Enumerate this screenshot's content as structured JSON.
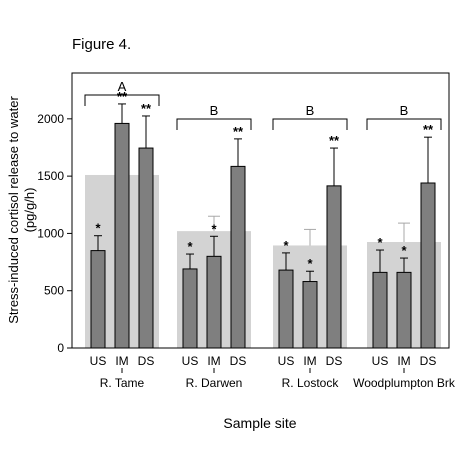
{
  "figure_label": "Figure 4.",
  "chart_data": {
    "type": "bar",
    "xlabel": "Sample site",
    "ylabel_line1": "Stress-induced cortisol release to water",
    "ylabel_line2": "(pg/g/h)",
    "ylim": [
      0,
      2400
    ],
    "yticks": [
      0,
      500,
      1000,
      1500,
      2000
    ],
    "grid": false,
    "colors": {
      "site_bar": "#d3d3d3",
      "subgroup_bar": "#7f7f7f",
      "axis": "#000000"
    },
    "sites": [
      {
        "name": "R. Tame",
        "group_letter": "A",
        "site_mean": 1510,
        "subgroups": [
          {
            "label": "US",
            "value": 850,
            "error": 130,
            "sig": "*"
          },
          {
            "label": "IM",
            "value": 1960,
            "error": 170,
            "sig": "**"
          },
          {
            "label": "DS",
            "value": 1745,
            "error": 280,
            "sig": "**"
          }
        ]
      },
      {
        "name": "R. Darwen",
        "group_letter": "B",
        "site_mean": 1020,
        "site_error": 130,
        "subgroups": [
          {
            "label": "US",
            "value": 690,
            "error": 130,
            "sig": "*"
          },
          {
            "label": "IM",
            "value": 800,
            "error": 175,
            "sig": "*"
          },
          {
            "label": "DS",
            "value": 1585,
            "error": 240,
            "sig": "**"
          }
        ]
      },
      {
        "name": "R. Lostock",
        "group_letter": "B",
        "site_mean": 895,
        "site_error": 140,
        "subgroups": [
          {
            "label": "US",
            "value": 680,
            "error": 150,
            "sig": "*"
          },
          {
            "label": "IM",
            "value": 580,
            "error": 90,
            "sig": "*"
          },
          {
            "label": "DS",
            "value": 1415,
            "error": 330,
            "sig": "**"
          }
        ]
      },
      {
        "name": "Woodplumpton Brk",
        "group_letter": "B",
        "site_mean": 925,
        "site_error": 165,
        "subgroups": [
          {
            "label": "US",
            "value": 660,
            "error": 195,
            "sig": "*"
          },
          {
            "label": "IM",
            "value": 660,
            "error": 125,
            "sig": "*"
          },
          {
            "label": "DS",
            "value": 1440,
            "error": 400,
            "sig": "**"
          }
        ]
      }
    ]
  }
}
